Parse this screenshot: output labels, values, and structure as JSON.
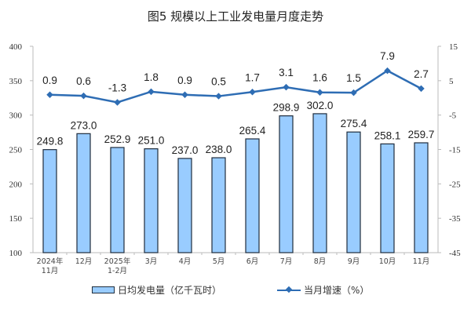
{
  "chart_data": {
    "type": "bar",
    "title": "图5  规模以上工业发电量月度走势",
    "categories": [
      "2024年\n11月",
      "12月",
      "2025年\n1-2月",
      "3月",
      "4月",
      "5月",
      "6月",
      "7月",
      "8月",
      "9月",
      "10月",
      "11月"
    ],
    "categories_line1": [
      "2024年",
      "12月",
      "2025年",
      "3月",
      "4月",
      "5月",
      "6月",
      "7月",
      "8月",
      "9月",
      "10月",
      "11月"
    ],
    "categories_line2": [
      "11月",
      "",
      "1-2月",
      "",
      "",
      "",
      "",
      "",
      "",
      "",
      "",
      ""
    ],
    "series": [
      {
        "name": "日均发电量（亿千瓦时）",
        "type": "bar",
        "axis": "left",
        "color": "#99ccff",
        "values": [
          249.8,
          273.0,
          252.9,
          251.0,
          237.0,
          238.0,
          265.4,
          298.9,
          302.0,
          275.4,
          258.1,
          259.7
        ]
      },
      {
        "name": "当月增速（%）",
        "type": "line",
        "axis": "right",
        "color": "#2e6db4",
        "values": [
          0.9,
          0.6,
          -1.3,
          1.8,
          0.9,
          0.5,
          1.7,
          3.1,
          1.6,
          1.5,
          7.9,
          2.7
        ]
      }
    ],
    "ylim_left": [
      100,
      400
    ],
    "yticks_left": [
      100,
      150,
      200,
      250,
      300,
      350,
      400
    ],
    "ylim_right": [
      -45,
      15
    ],
    "yticks_right": [
      15,
      5,
      -5,
      -15,
      -25,
      -35,
      -45
    ],
    "legend_position": "bottom",
    "grid": false
  },
  "legend": {
    "bar": "日均发电量（亿千瓦时）",
    "line": "当月增速（%）"
  }
}
